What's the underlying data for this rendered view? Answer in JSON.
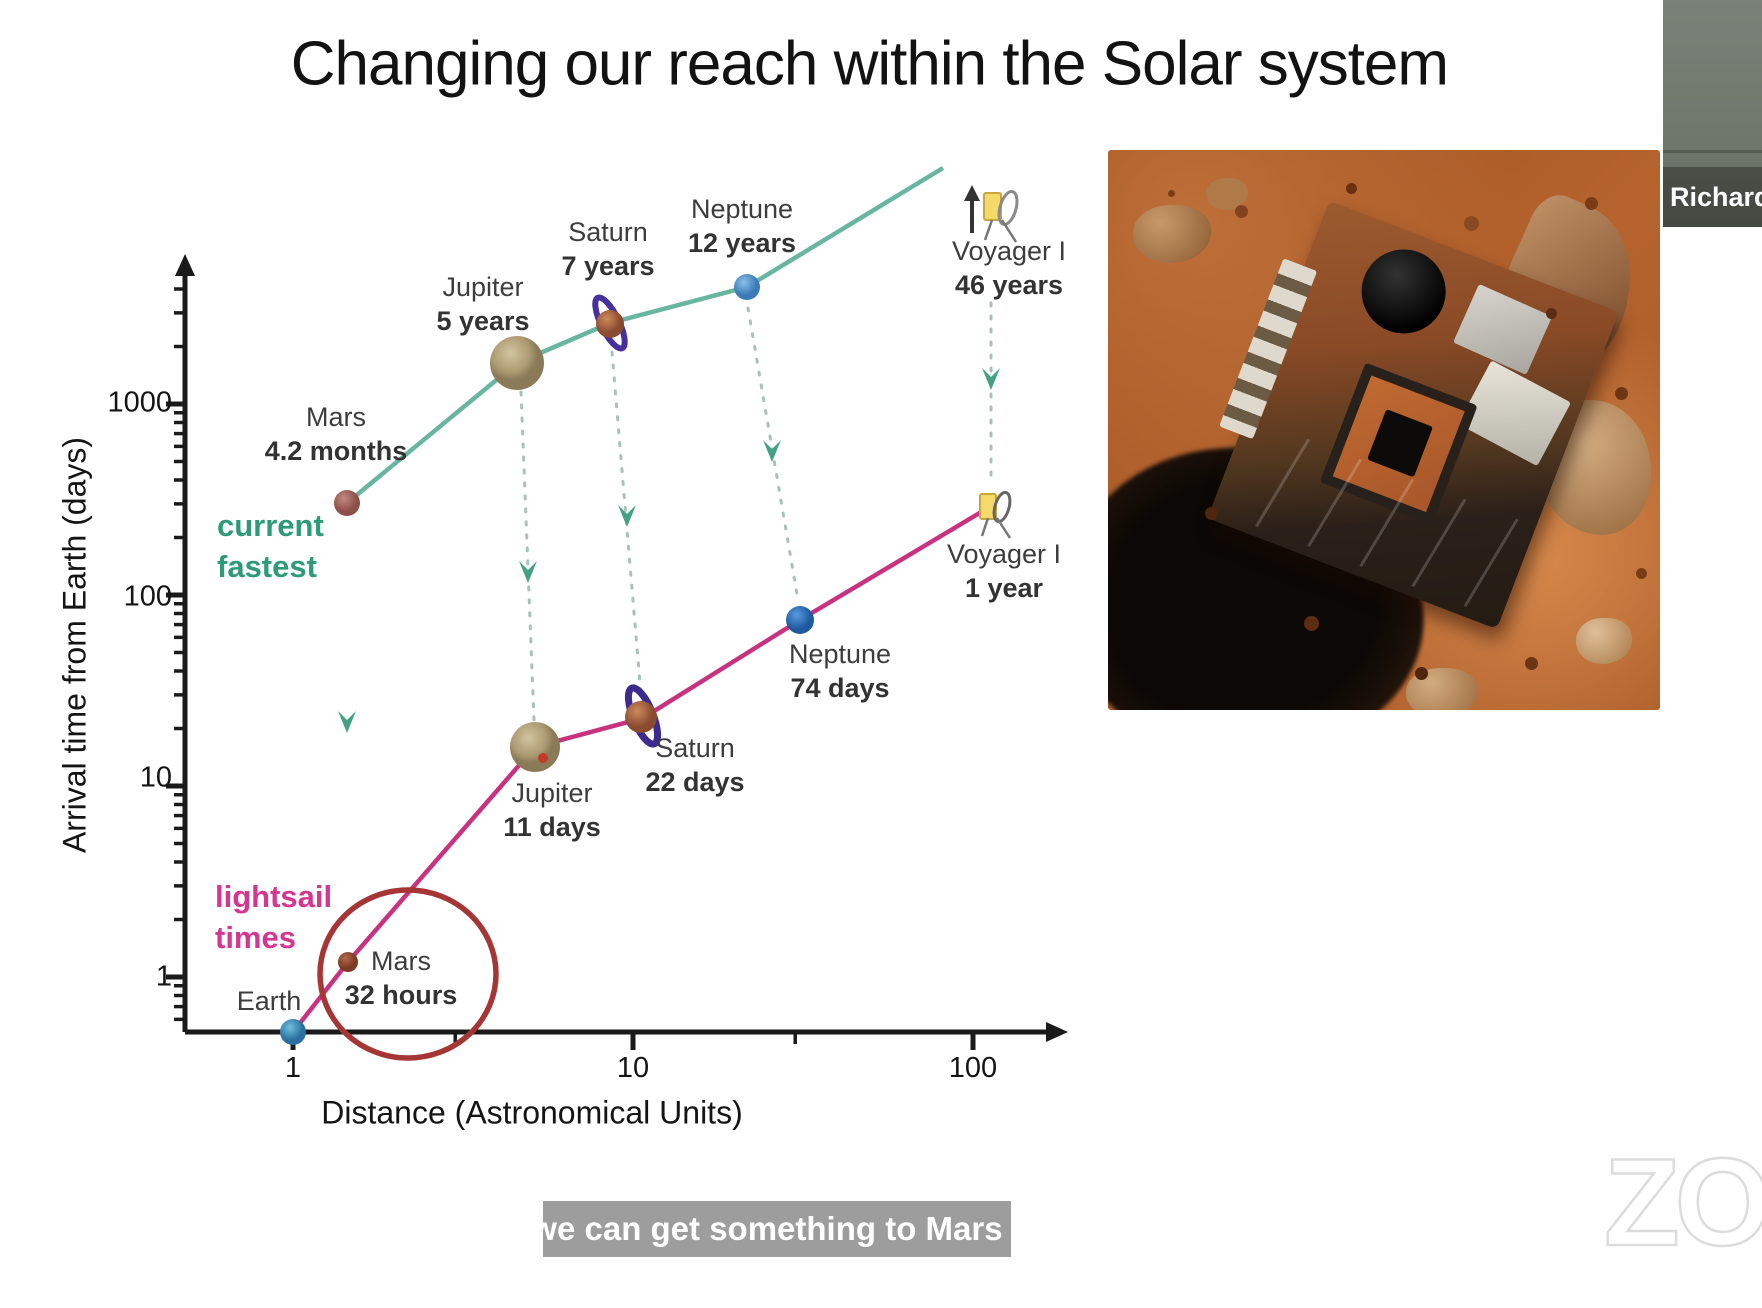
{
  "slide": {
    "title": "Changing our reach within the Solar system"
  },
  "chart_data": {
    "type": "line",
    "title": "",
    "xlabel": "Distance (Astronomical Units)",
    "ylabel": "Arrival time from Earth (days)",
    "x_scale": "log",
    "y_scale": "log",
    "x_ticks": [
      "1",
      "10",
      "100"
    ],
    "y_ticks": [
      "1",
      "10",
      "100",
      "1000"
    ],
    "x_range_au": [
      0.55,
      300
    ],
    "y_range_days": [
      0.45,
      9000
    ],
    "grid": false,
    "legend_position": "inline-labels",
    "series": [
      {
        "name": "current fastest",
        "label_text": "current\nfastest",
        "color": "#2e9b77",
        "line_color": "#68b5a0",
        "points": [
          {
            "body": "Mars",
            "time": "4.2 months",
            "au": 1.5,
            "days": 126
          },
          {
            "body": "Jupiter",
            "time": "5 years",
            "au": 5.2,
            "days": 1825
          },
          {
            "body": "Saturn",
            "time": "7 years",
            "au": 9.5,
            "days": 2555
          },
          {
            "body": "Neptune",
            "time": "12 years",
            "au": 30,
            "days": 4380
          },
          {
            "body": "Voyager I",
            "time": "46 years",
            "au": 122,
            "days": 16800,
            "off_chart": true
          }
        ]
      },
      {
        "name": "lightsail times",
        "label_text": "lightsail\ntimes",
        "color": "#d6368f",
        "line_color": "#c9327f",
        "points": [
          {
            "body": "Earth",
            "time": "",
            "au": 1,
            "days": 0.5
          },
          {
            "body": "Mars",
            "time": "32 hours",
            "au": 1.5,
            "days": 1.33
          },
          {
            "body": "Jupiter",
            "time": "11 days",
            "au": 5.2,
            "days": 11
          },
          {
            "body": "Saturn",
            "time": "22 days",
            "au": 9.5,
            "days": 22
          },
          {
            "body": "Neptune",
            "time": "74 days",
            "au": 30,
            "days": 74
          },
          {
            "body": "Voyager I",
            "time": "1 year",
            "au": 122,
            "days": 365
          }
        ]
      }
    ],
    "annotations": [
      {
        "type": "circle",
        "target": "lightsail Mars 32 hours",
        "color": "#a63636"
      }
    ]
  },
  "photo": {
    "description": "circuit board with chip lying on red Martian sand"
  },
  "zoom_ui": {
    "participant_name": "Richard",
    "caption": "so we can get something to Mars you",
    "watermark": "ZO"
  },
  "colors": {
    "teal_line": "#68b5a0",
    "pink_line": "#c9327f",
    "dashed_connector": "#a7c2ba",
    "arrowhead": "#43a184",
    "highlight_circle": "#a63636",
    "caption_bg": "#989898"
  }
}
